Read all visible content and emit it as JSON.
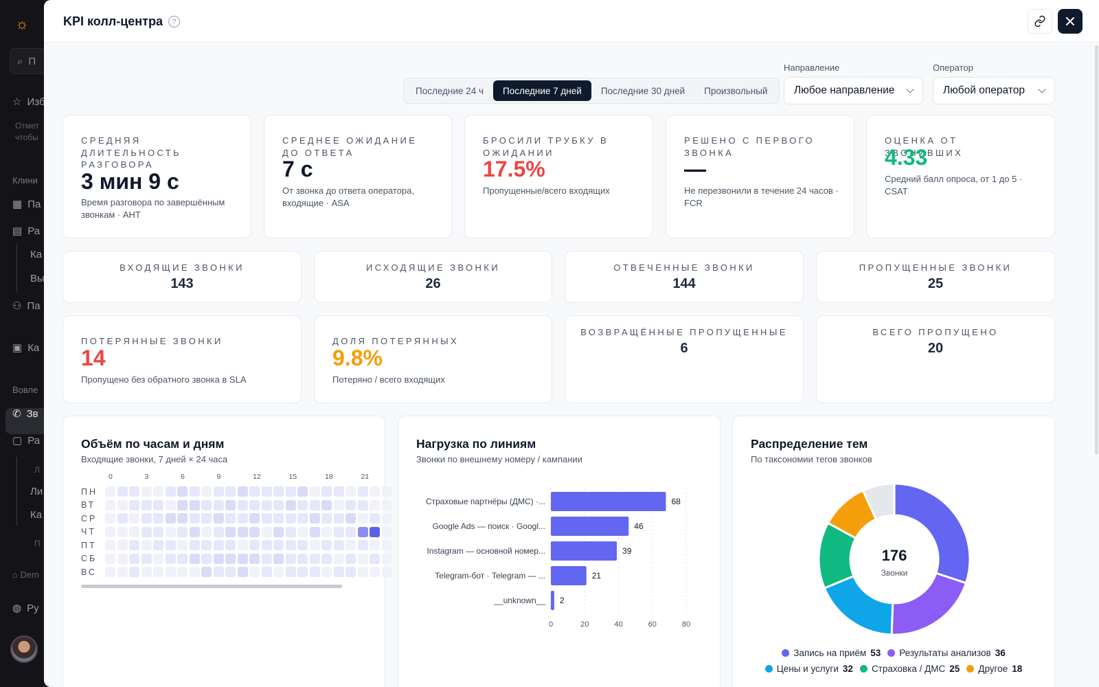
{
  "sidebar": {
    "search": "П",
    "items": [
      {
        "label": "Изб",
        "icon": "star-icon"
      },
      {
        "label": "Па",
        "icon": "grid-icon"
      },
      {
        "label": "Ра",
        "icon": "calendar-icon"
      },
      {
        "label": "Ка"
      },
      {
        "label": "Вы"
      },
      {
        "label": "Па",
        "icon": "user-icon"
      },
      {
        "label": "Ка",
        "icon": "card-icon"
      },
      {
        "label": "Зв",
        "icon": "phone-icon"
      },
      {
        "label": "Ра",
        "icon": "badge-icon"
      },
      {
        "label": "Ли"
      },
      {
        "label": "Ка"
      },
      {
        "label": "Ру",
        "icon": "globe-icon"
      }
    ],
    "note1": "Отмет",
    "note2": "чтобы",
    "section1": "Клини",
    "section2": "Вовле",
    "sub_a": "Л",
    "sub_b": "П",
    "dem": "Dem"
  },
  "header": {
    "title": "KPI колл-центра",
    "help": "?"
  },
  "period": {
    "options": [
      "Последние 24 ч",
      "Последние 7 дней",
      "Последние 30 дней",
      "Произвольный"
    ],
    "selected": 1
  },
  "filters": {
    "direction_label": "Направление",
    "direction_value": "Любое направление",
    "operator_label": "Оператор",
    "operator_value": "Любой оператор"
  },
  "kpis": [
    {
      "label": "Средняя длительность разговора",
      "value": "3 мин 9 с",
      "desc": "Время разговора по завершённым звонкам · AHT",
      "color": "#0f172a"
    },
    {
      "label": "Среднее ожидание до ответа",
      "value": "7 с",
      "desc": "От звонка до ответа оператора, входящие · ASA",
      "color": "#0f172a"
    },
    {
      "label": "Бросили трубку в ожидании",
      "value": "17.5%",
      "desc": "Пропущенные/всего входящих",
      "color": "#ef4444"
    },
    {
      "label": "Решено с первого звонка",
      "value": "—",
      "desc": "Не перезвонили в течение 24 часов · FCR",
      "color": "#0f172a"
    },
    {
      "label": "Оценка от звонивших",
      "value": "4.33",
      "desc": "Средний балл опроса, от 1 до 5 · CSAT",
      "color": "#10b981"
    }
  ],
  "counts": [
    {
      "label": "Входящие звонки",
      "value": "143"
    },
    {
      "label": "Исходящие звонки",
      "value": "26"
    },
    {
      "label": "Отвеченные звонки",
      "value": "144"
    },
    {
      "label": "Пропущенные звонки",
      "value": "25"
    }
  ],
  "lost": [
    {
      "label": "Потерянные звонки",
      "value": "14",
      "desc": "Пропущено без обратного звонка в SLA",
      "color": "#ef4444"
    },
    {
      "label": "Доля потерянных",
      "value": "9.8%",
      "desc": "Потеряно / всего входящих",
      "color": "#f59e0b"
    }
  ],
  "counts2": [
    {
      "label": "Возвращённые пропущенные",
      "value": "6"
    },
    {
      "label": "Всего пропущено",
      "value": "20"
    }
  ],
  "heatmap": {
    "title": "Объём по часам и дням",
    "subtitle": "Входящие звонки, 7 дней × 24 часа",
    "hours": [
      "0",
      "3",
      "6",
      "9",
      "12",
      "15",
      "18",
      "21"
    ],
    "days": [
      "ПН",
      "ВТ",
      "СР",
      "ЧТ",
      "ПТ",
      "СБ",
      "ВС"
    ],
    "levels": [
      [
        0,
        1,
        1,
        0,
        0,
        1,
        2,
        1,
        0,
        1,
        1,
        2,
        1,
        1,
        1,
        1,
        2,
        0,
        1,
        1,
        0,
        1,
        0,
        0
      ],
      [
        0,
        0,
        1,
        1,
        1,
        0,
        2,
        2,
        1,
        1,
        2,
        1,
        1,
        1,
        1,
        2,
        1,
        1,
        2,
        0,
        1,
        1,
        0,
        0
      ],
      [
        0,
        1,
        0,
        1,
        1,
        2,
        2,
        1,
        1,
        2,
        1,
        1,
        2,
        1,
        1,
        1,
        1,
        2,
        1,
        1,
        2,
        0,
        1,
        0
      ],
      [
        0,
        0,
        0,
        1,
        1,
        0,
        1,
        2,
        0,
        1,
        2,
        2,
        2,
        0,
        2,
        1,
        0,
        2,
        0,
        1,
        1,
        4,
        5,
        0
      ],
      [
        0,
        0,
        1,
        0,
        1,
        1,
        0,
        1,
        1,
        1,
        1,
        0,
        1,
        1,
        1,
        1,
        1,
        0,
        1,
        1,
        0,
        1,
        0,
        0
      ],
      [
        0,
        0,
        1,
        1,
        0,
        1,
        1,
        2,
        1,
        2,
        2,
        2,
        2,
        1,
        2,
        1,
        1,
        1,
        1,
        0,
        1,
        0,
        1,
        0
      ],
      [
        0,
        0,
        1,
        0,
        0,
        0,
        0,
        0,
        2,
        1,
        1,
        2,
        0,
        1,
        0,
        1,
        1,
        1,
        0,
        1,
        1,
        0,
        0,
        0
      ]
    ]
  },
  "lines": {
    "title": "Нагрузка по линиям",
    "subtitle": "Звонки по внешнему номеру / кампании"
  },
  "topics": {
    "title": "Распределение тем",
    "subtitle": "По таксономии тегов звонков",
    "total": "176",
    "total_label": "Звонки"
  },
  "chart_data": [
    {
      "type": "bar",
      "orientation": "horizontal",
      "title": "Нагрузка по линиям",
      "subtitle": "Звонки по внешнему номеру / кампании",
      "categories": [
        "Страховые партнёры (ДМС) ·...",
        "Google Ads — поиск · Googl...",
        "Instagram — основной номер...",
        "Telegram-бот · Telegram — ...",
        "__unknown__"
      ],
      "values": [
        68,
        46,
        39,
        21,
        2
      ],
      "xlim": [
        0,
        80
      ],
      "xticks": [
        0,
        20,
        40,
        60,
        80
      ],
      "grid": true,
      "color": "#6366f1"
    },
    {
      "type": "pie",
      "donut": true,
      "title": "Распределение тем",
      "subtitle": "По таксономии тегов звонков",
      "center_value": "176",
      "center_label": "Звонки",
      "slices": [
        {
          "name": "Запись на приём",
          "value": 53,
          "color": "#6366f1"
        },
        {
          "name": "Результаты анализов",
          "value": 36,
          "color": "#8b5cf6"
        },
        {
          "name": "Цены и услуги",
          "value": 32,
          "color": "#0ea5e9"
        },
        {
          "name": "Страховка / ДМС",
          "value": 25,
          "color": "#10b981"
        },
        {
          "name": "Другое",
          "value": 18,
          "color": "#f59e0b"
        },
        {
          "name": "",
          "value": 12,
          "color": "#e5e7eb"
        }
      ]
    }
  ]
}
